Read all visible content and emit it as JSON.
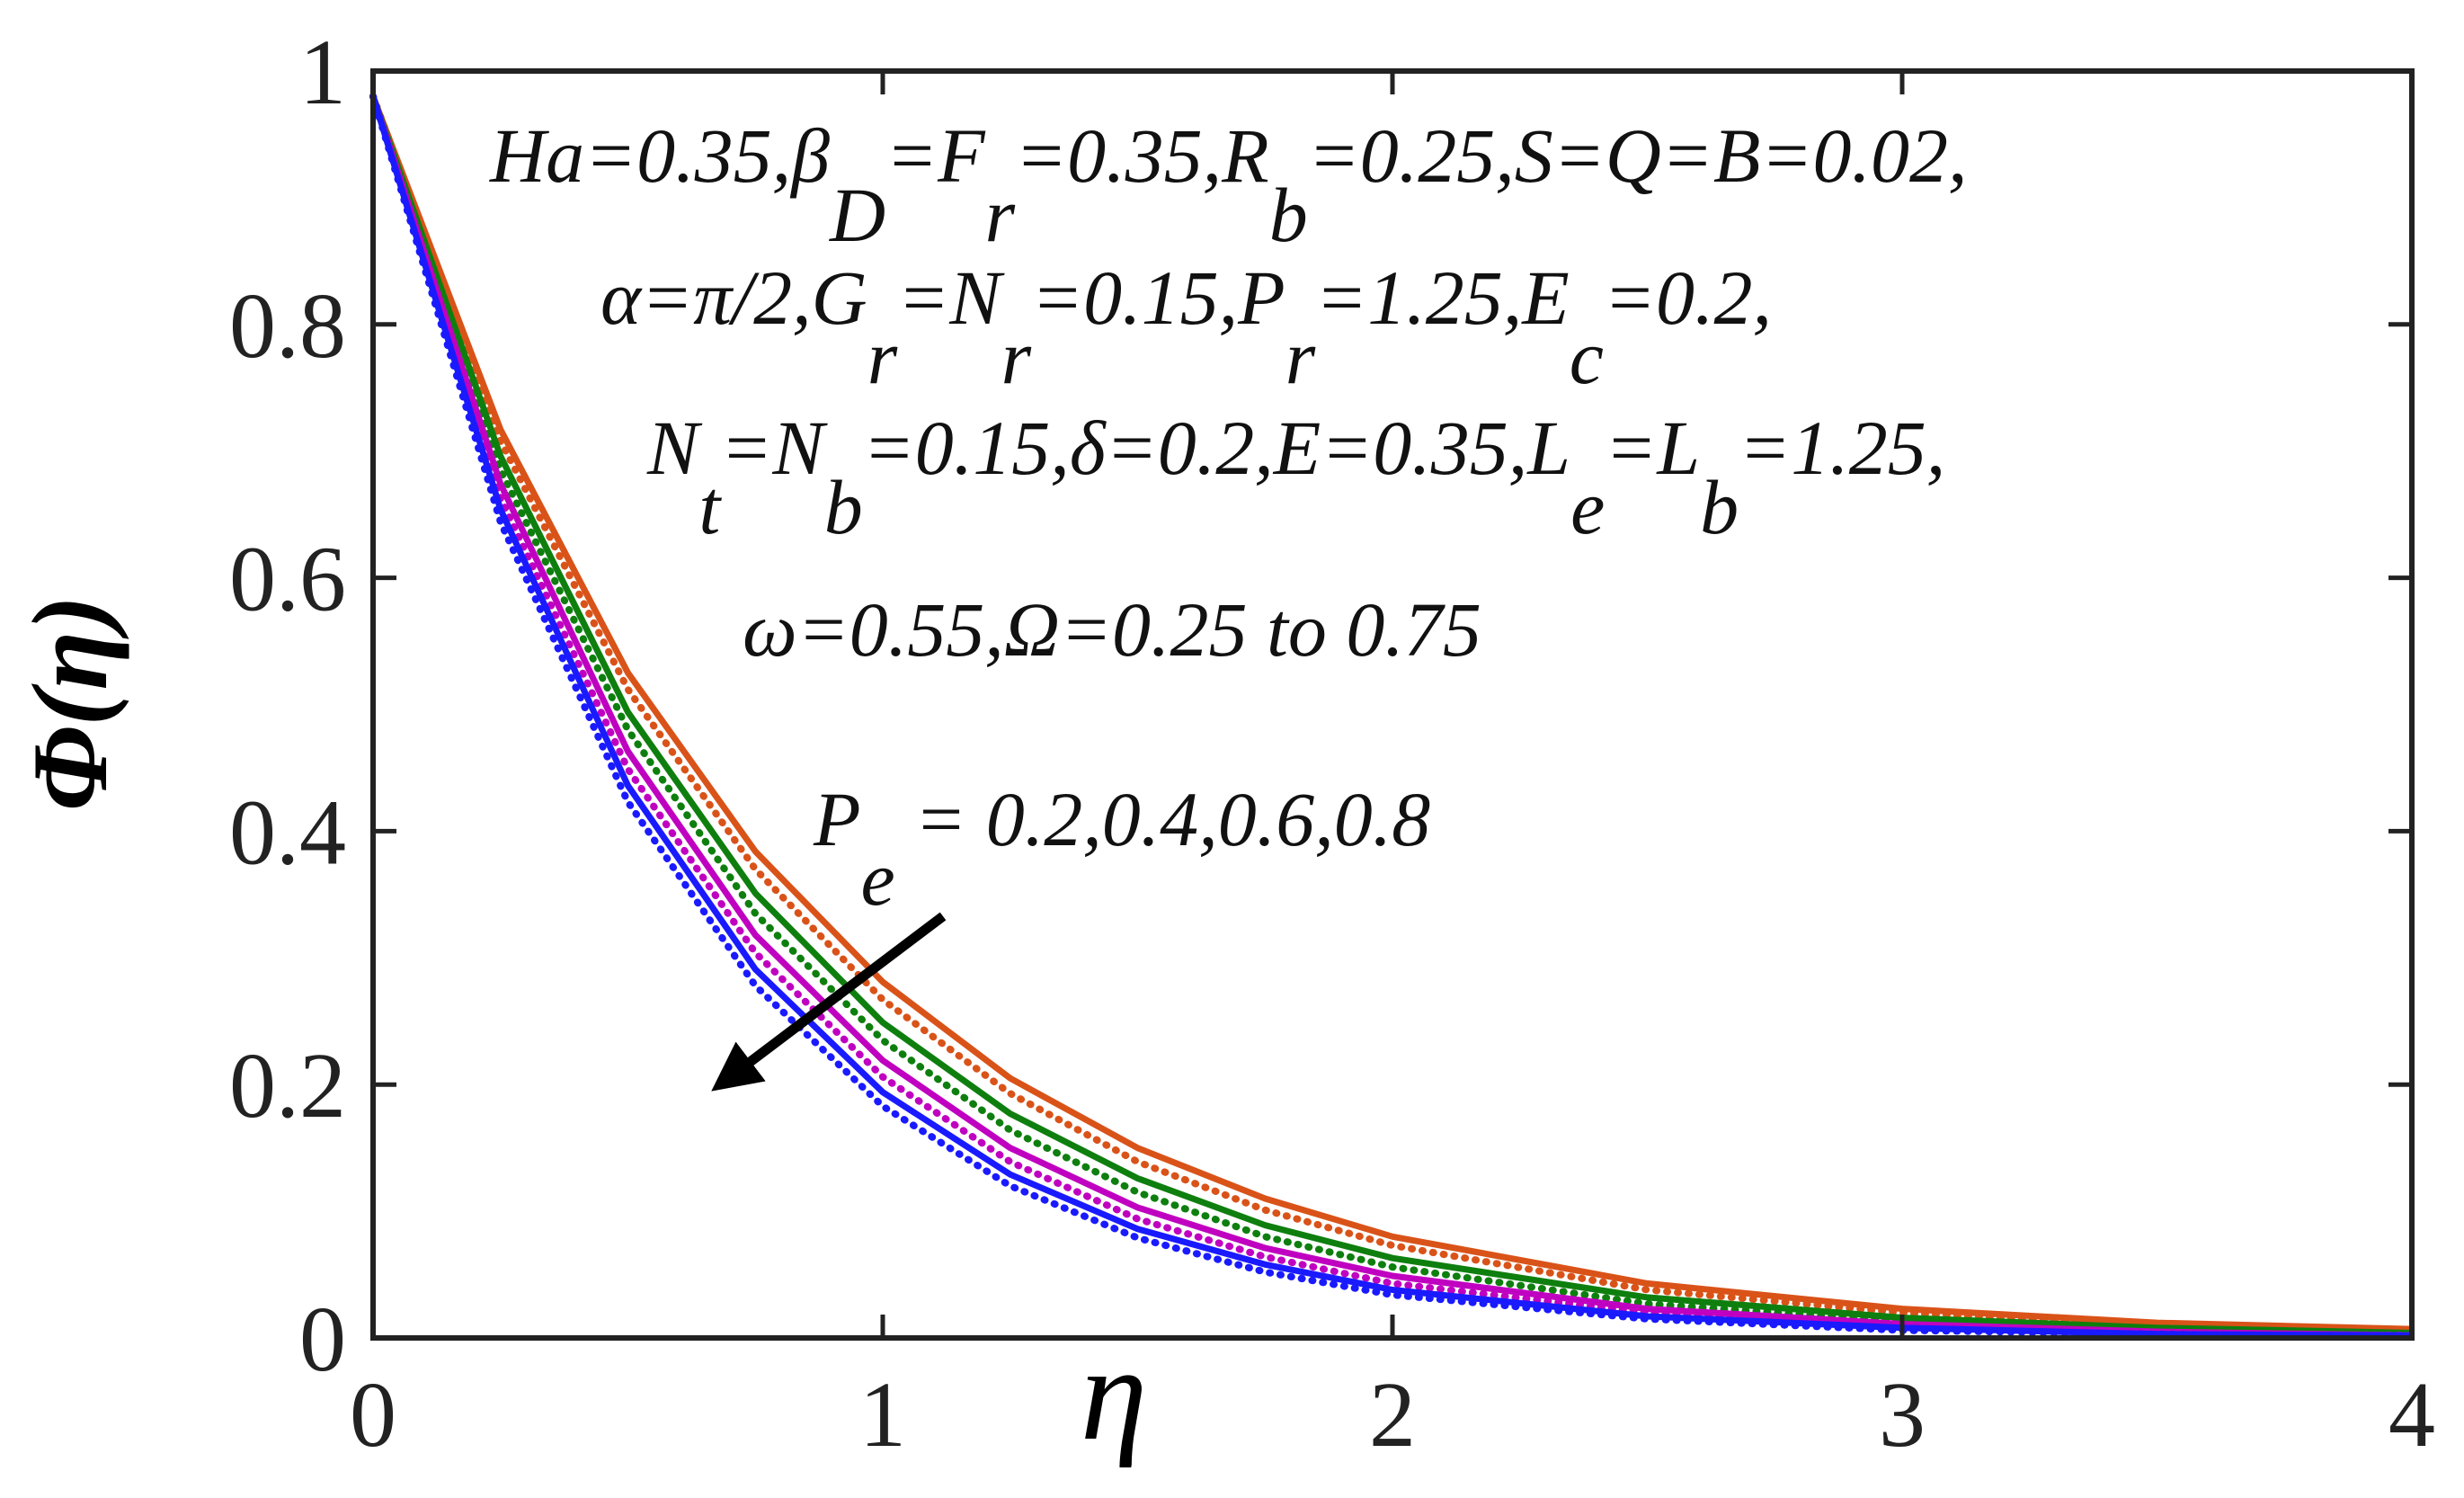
{
  "chart_data": {
    "type": "line",
    "xlabel": "η",
    "ylabel": "Φ(η)",
    "xlim": [
      0,
      4
    ],
    "ylim": [
      0,
      1
    ],
    "xticks": [
      0,
      1,
      2,
      3,
      4
    ],
    "yticks": [
      0,
      0.2,
      0.4,
      0.6,
      0.8,
      1
    ],
    "x": [
      0,
      0.25,
      0.5,
      0.75,
      1,
      1.25,
      1.5,
      1.75,
      2,
      2.5,
      3,
      3.5,
      4
    ],
    "series": [
      {
        "color": "#d95319",
        "style": "solid",
        "values": [
          0.98,
          0.717,
          0.525,
          0.384,
          0.281,
          0.205,
          0.15,
          0.11,
          0.08,
          0.043,
          0.023,
          0.012,
          0.007
        ]
      },
      {
        "color": "#d95319",
        "style": "dotted",
        "values": [
          0.98,
          0.708,
          0.512,
          0.37,
          0.267,
          0.193,
          0.139,
          0.101,
          0.073,
          0.038,
          0.02,
          0.01,
          0.005
        ]
      },
      {
        "color": "#0e7f0e",
        "style": "solid",
        "values": [
          0.98,
          0.696,
          0.494,
          0.351,
          0.249,
          0.177,
          0.126,
          0.089,
          0.063,
          0.032,
          0.016,
          0.008,
          0.004
        ]
      },
      {
        "color": "#0e7f0e",
        "style": "dotted",
        "values": [
          0.98,
          0.685,
          0.48,
          0.335,
          0.235,
          0.164,
          0.115,
          0.08,
          0.056,
          0.027,
          0.013,
          0.007,
          0.003
        ]
      },
      {
        "color": "#c000c0",
        "style": "solid",
        "values": [
          0.98,
          0.674,
          0.463,
          0.318,
          0.219,
          0.15,
          0.103,
          0.071,
          0.049,
          0.023,
          0.011,
          0.005,
          0.002
        ]
      },
      {
        "color": "#c000c0",
        "style": "dotted",
        "values": [
          0.98,
          0.663,
          0.449,
          0.304,
          0.206,
          0.139,
          0.094,
          0.064,
          0.043,
          0.02,
          0.009,
          0.004,
          0.002
        ]
      },
      {
        "color": "#1a1aff",
        "style": "solid",
        "values": [
          0.98,
          0.654,
          0.436,
          0.291,
          0.194,
          0.129,
          0.086,
          0.058,
          0.038,
          0.017,
          0.008,
          0.003,
          0.002
        ]
      },
      {
        "color": "#1a1aff",
        "style": "dotted",
        "values": [
          0.98,
          0.644,
          0.423,
          0.278,
          0.183,
          0.12,
          0.079,
          0.052,
          0.034,
          0.015,
          0.006,
          0.003,
          0.001
        ]
      }
    ],
    "annotations": [
      {
        "parts": [
          {
            "text": "Ha=0.35,β"
          },
          {
            "text": "D",
            "sub": true
          },
          {
            "text": "=F"
          },
          {
            "text": "r",
            "sub": true
          },
          {
            "text": "=0.35,R"
          },
          {
            "text": "b",
            "sub": true
          },
          {
            "text": "=0.25,S=Q=B=0.02,"
          }
        ]
      },
      {
        "parts": [
          {
            "text": "α=π/2,G"
          },
          {
            "text": "r",
            "sub": true
          },
          {
            "text": "=N"
          },
          {
            "text": "r",
            "sub": true
          },
          {
            "text": "=0.15,P"
          },
          {
            "text": "r",
            "sub": true
          },
          {
            "text": "=1.25,E"
          },
          {
            "text": "c",
            "sub": true
          },
          {
            "text": "=0.2,"
          }
        ]
      },
      {
        "parts": [
          {
            "text": "N"
          },
          {
            "text": "t",
            "sub": true
          },
          {
            "text": "=N"
          },
          {
            "text": "b",
            "sub": true
          },
          {
            "text": "=0.15,δ=0.2,E=0.35,L"
          },
          {
            "text": "e",
            "sub": true
          },
          {
            "text": "=L"
          },
          {
            "text": "b",
            "sub": true
          },
          {
            "text": "=1.25,"
          }
        ]
      },
      {
        "parts": [
          {
            "text": "ω=0.55,Ω=0.25 to 0.75"
          }
        ]
      },
      {
        "parts": [
          {
            "text": "P"
          },
          {
            "text": "e",
            "sub": true
          },
          {
            "text": " = 0.2,0.4,0.6,0.8"
          }
        ]
      }
    ]
  }
}
